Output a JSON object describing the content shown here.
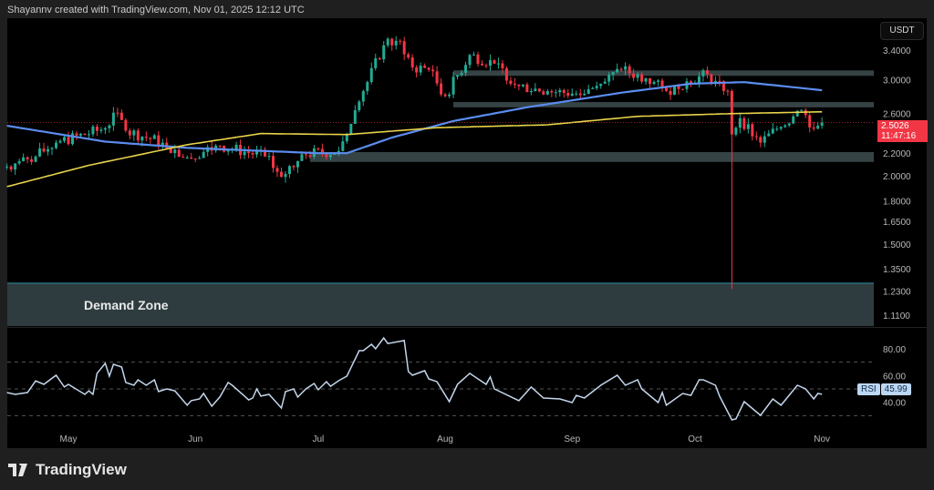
{
  "credit": "Shayannv created with TradingView.com, Nov 01, 2025 12:12 UTC",
  "brand": "TradingView",
  "currency": "USDT",
  "last_price": "2.5026",
  "countdown": "11:47:16",
  "demand_zone_label": "Demand Zone",
  "rsi_label": "RSI",
  "rsi_value": "45.99",
  "colors": {
    "up": "#22ab94",
    "down": "#f23645",
    "ma_fast": "#5b8def",
    "ma_slow": "#e8d34a",
    "zone": "#364345",
    "demand_zone": "#2e3c3f",
    "demand_border": "#2b6f7e",
    "rsi": "#c3d6ec"
  },
  "chart_data": [
    {
      "type": "candlestick",
      "scale": "log",
      "price_ticks": [
        "3.4000",
        "3.0000",
        "2.6000",
        "2.2000",
        "2.0000",
        "1.8000",
        "1.6500",
        "1.5000",
        "1.3500",
        "1.2300",
        "1.1100"
      ],
      "time_ticks": [
        "May",
        "Jun",
        "Jul",
        "Aug",
        "Sep",
        "Oct",
        "Nov"
      ],
      "x_range": [
        "2025-04-16",
        "2025-11-01"
      ],
      "close_keypoints": [
        [
          "2025-04-16",
          2.08
        ],
        [
          "2025-04-23",
          2.17
        ],
        [
          "2025-04-28",
          2.3
        ],
        [
          "2025-05-09",
          2.43
        ],
        [
          "2025-05-13",
          2.61
        ],
        [
          "2025-05-15",
          2.42
        ],
        [
          "2025-05-24",
          2.3
        ],
        [
          "2025-05-30",
          2.16
        ],
        [
          "2025-06-07",
          2.27
        ],
        [
          "2025-06-18",
          2.17
        ],
        [
          "2025-06-22",
          1.99
        ],
        [
          "2025-06-27",
          2.19
        ],
        [
          "2025-07-06",
          2.22
        ],
        [
          "2025-07-09",
          2.49
        ],
        [
          "2025-07-12",
          2.86
        ],
        [
          "2025-07-17",
          3.47
        ],
        [
          "2025-07-21",
          3.53
        ],
        [
          "2025-07-24",
          3.16
        ],
        [
          "2025-07-28",
          3.13
        ],
        [
          "2025-08-01",
          2.8
        ],
        [
          "2025-08-07",
          3.33
        ],
        [
          "2025-08-13",
          3.21
        ],
        [
          "2025-08-19",
          2.92
        ],
        [
          "2025-08-26",
          2.86
        ],
        [
          "2025-09-02",
          2.83
        ],
        [
          "2025-09-08",
          2.95
        ],
        [
          "2025-09-13",
          3.13
        ],
        [
          "2025-09-19",
          3.02
        ],
        [
          "2025-09-24",
          2.86
        ],
        [
          "2025-09-29",
          2.98
        ],
        [
          "2025-10-04",
          3.07
        ],
        [
          "2025-10-09",
          2.86
        ],
        [
          "2025-10-10",
          2.38
        ],
        [
          "2025-10-12",
          2.55
        ],
        [
          "2025-10-17",
          2.3
        ],
        [
          "2025-10-21",
          2.44
        ],
        [
          "2025-10-27",
          2.64
        ],
        [
          "2025-10-30",
          2.44
        ],
        [
          "2025-11-01",
          2.5026
        ]
      ],
      "notable_wicks": [
        {
          "date": "2025-10-10",
          "low": 1.24
        }
      ],
      "moving_averages": [
        {
          "color_key": "ma_fast",
          "points": [
            [
              "2025-04-16",
              2.47
            ],
            [
              "2025-05-10",
              2.31
            ],
            [
              "2025-05-30",
              2.25
            ],
            [
              "2025-07-01",
              2.2
            ],
            [
              "2025-07-08",
              2.2
            ],
            [
              "2025-07-19",
              2.35
            ],
            [
              "2025-08-03",
              2.52
            ],
            [
              "2025-08-21",
              2.67
            ],
            [
              "2025-09-13",
              2.84
            ],
            [
              "2025-09-30",
              2.95
            ],
            [
              "2025-10-13",
              2.97
            ],
            [
              "2025-11-01",
              2.87
            ]
          ]
        },
        {
          "color_key": "ma_slow",
          "points": [
            [
              "2025-04-16",
              1.91
            ],
            [
              "2025-05-06",
              2.09
            ],
            [
              "2025-05-30",
              2.28
            ],
            [
              "2025-06-17",
              2.39
            ],
            [
              "2025-07-08",
              2.38
            ],
            [
              "2025-07-30",
              2.45
            ],
            [
              "2025-08-26",
              2.48
            ],
            [
              "2025-09-17",
              2.57
            ],
            [
              "2025-10-10",
              2.6
            ],
            [
              "2025-11-01",
              2.62
            ]
          ]
        }
      ],
      "zones": [
        {
          "from": "2025-08-03",
          "top": 3.12,
          "bottom": 3.05
        },
        {
          "from": "2025-08-03",
          "top": 2.73,
          "bottom": 2.67
        },
        {
          "from": "2025-06-29",
          "top": 2.21,
          "bottom": 2.12
        },
        {
          "from": "2025-04-16",
          "top": 1.27,
          "bottom": 1.06,
          "label": "Demand Zone"
        }
      ]
    },
    {
      "type": "line",
      "name": "RSI",
      "ticks": [
        "80.00",
        "60.00",
        "40.00"
      ],
      "points": [
        [
          "2025-04-16",
          47.3
        ],
        [
          "2025-04-18",
          45.9
        ],
        [
          "2025-04-21",
          47.3
        ],
        [
          "2025-04-23",
          56
        ],
        [
          "2025-04-25",
          53.4
        ],
        [
          "2025-04-28",
          60.2
        ],
        [
          "2025-04-30",
          51.4
        ],
        [
          "2025-05-01",
          53.4
        ],
        [
          "2025-05-05",
          45.9
        ],
        [
          "2025-05-06",
          48.6
        ],
        [
          "2025-05-07",
          45.9
        ],
        [
          "2025-05-08",
          61.6
        ],
        [
          "2025-05-10",
          69.1
        ],
        [
          "2025-05-11",
          59.5
        ],
        [
          "2025-05-12",
          68.4
        ],
        [
          "2025-05-14",
          66.3
        ],
        [
          "2025-05-15",
          54.8
        ],
        [
          "2025-05-17",
          52.7
        ],
        [
          "2025-05-18",
          56.8
        ],
        [
          "2025-05-20",
          52.7
        ],
        [
          "2025-05-22",
          56.8
        ],
        [
          "2025-05-23",
          48
        ],
        [
          "2025-05-25",
          50
        ],
        [
          "2025-05-27",
          48.6
        ],
        [
          "2025-05-30",
          37.8
        ],
        [
          "2025-05-31",
          41.2
        ],
        [
          "2025-06-02",
          42.5
        ],
        [
          "2025-06-03",
          46.6
        ],
        [
          "2025-06-05",
          37.1
        ],
        [
          "2025-06-07",
          44
        ],
        [
          "2025-06-09",
          54.8
        ],
        [
          "2025-06-10",
          52.7
        ],
        [
          "2025-06-13",
          44.6
        ],
        [
          "2025-06-14",
          41.8
        ],
        [
          "2025-06-15",
          43.2
        ],
        [
          "2025-06-16",
          50
        ],
        [
          "2025-06-17",
          44.6
        ],
        [
          "2025-06-19",
          45.9
        ],
        [
          "2025-06-22",
          35.7
        ],
        [
          "2025-06-23",
          48
        ],
        [
          "2025-06-25",
          50
        ],
        [
          "2025-06-26",
          43.9
        ],
        [
          "2025-06-28",
          50
        ],
        [
          "2025-06-30",
          54.1
        ],
        [
          "2025-07-01",
          49.3
        ],
        [
          "2025-07-03",
          55.4
        ],
        [
          "2025-07-04",
          52
        ],
        [
          "2025-07-06",
          56.1
        ],
        [
          "2025-07-08",
          59.5
        ],
        [
          "2025-07-11",
          78.6
        ],
        [
          "2025-07-12",
          78.6
        ],
        [
          "2025-07-14",
          83.3
        ],
        [
          "2025-07-15",
          80
        ],
        [
          "2025-07-17",
          88.1
        ],
        [
          "2025-07-18",
          83.9
        ],
        [
          "2025-07-22",
          86.1
        ],
        [
          "2025-07-23",
          63
        ],
        [
          "2025-07-24",
          60.2
        ],
        [
          "2025-07-27",
          63.6
        ],
        [
          "2025-07-28",
          57.5
        ],
        [
          "2025-07-30",
          55.4
        ],
        [
          "2025-08-02",
          40.5
        ],
        [
          "2025-08-04",
          53.4
        ],
        [
          "2025-08-07",
          61.6
        ],
        [
          "2025-08-11",
          53.4
        ],
        [
          "2025-08-12",
          59
        ],
        [
          "2025-08-13",
          50
        ],
        [
          "2025-08-19",
          41.2
        ],
        [
          "2025-08-22",
          51.4
        ],
        [
          "2025-08-25",
          43.2
        ],
        [
          "2025-08-29",
          42.5
        ],
        [
          "2025-09-01",
          39.8
        ],
        [
          "2025-09-02",
          45.2
        ],
        [
          "2025-09-04",
          43.2
        ],
        [
          "2025-09-08",
          52.7
        ],
        [
          "2025-09-12",
          60.2
        ],
        [
          "2025-09-14",
          52.7
        ],
        [
          "2025-09-17",
          56.8
        ],
        [
          "2025-09-18",
          50
        ],
        [
          "2025-09-22",
          39.8
        ],
        [
          "2025-09-23",
          47.3
        ],
        [
          "2025-09-24",
          37.8
        ],
        [
          "2025-09-28",
          46.6
        ],
        [
          "2025-09-30",
          45.2
        ],
        [
          "2025-10-02",
          56.8
        ],
        [
          "2025-10-03",
          56.8
        ],
        [
          "2025-10-06",
          52.7
        ],
        [
          "2025-10-07",
          44.6
        ],
        [
          "2025-10-10",
          26.9
        ],
        [
          "2025-10-11",
          27.6
        ],
        [
          "2025-10-13",
          40.5
        ],
        [
          "2025-10-17",
          30.3
        ],
        [
          "2025-10-20",
          42.5
        ],
        [
          "2025-10-22",
          37.8
        ],
        [
          "2025-10-26",
          52.7
        ],
        [
          "2025-10-28",
          50
        ],
        [
          "2025-10-30",
          42.5
        ],
        [
          "2025-10-31",
          46.6
        ],
        [
          "2025-11-01",
          45.99
        ]
      ]
    }
  ]
}
